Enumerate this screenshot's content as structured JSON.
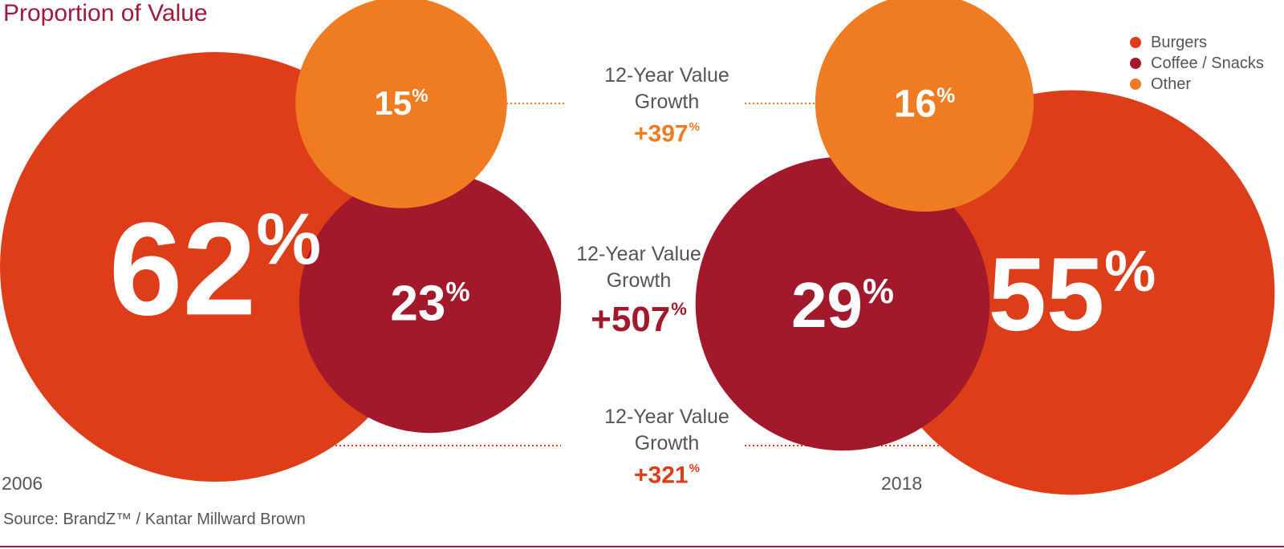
{
  "title": "Proportion of Value",
  "chart_data": {
    "type": "bubble",
    "title": "Proportion of Value",
    "legend": {
      "placement": "top-right",
      "items": [
        {
          "name": "Burgers",
          "color": "#dd3d18"
        },
        {
          "name": "Coffee / Snacks",
          "color": "#a3192c"
        },
        {
          "name": "Other",
          "color": "#ef7b22"
        }
      ]
    },
    "years": [
      "2006",
      "2018"
    ],
    "series": [
      {
        "name": "Burgers",
        "values": [
          62,
          55
        ],
        "growth": "+321"
      },
      {
        "name": "Coffee / Snacks",
        "values": [
          23,
          29
        ],
        "growth": "+507"
      },
      {
        "name": "Other",
        "values": [
          15,
          16
        ],
        "growth": "+397"
      }
    ],
    "unit": "%"
  },
  "growth_label": "12-Year Value Growth",
  "source": "Source: BrandZ™ / Kantar Millward Brown"
}
